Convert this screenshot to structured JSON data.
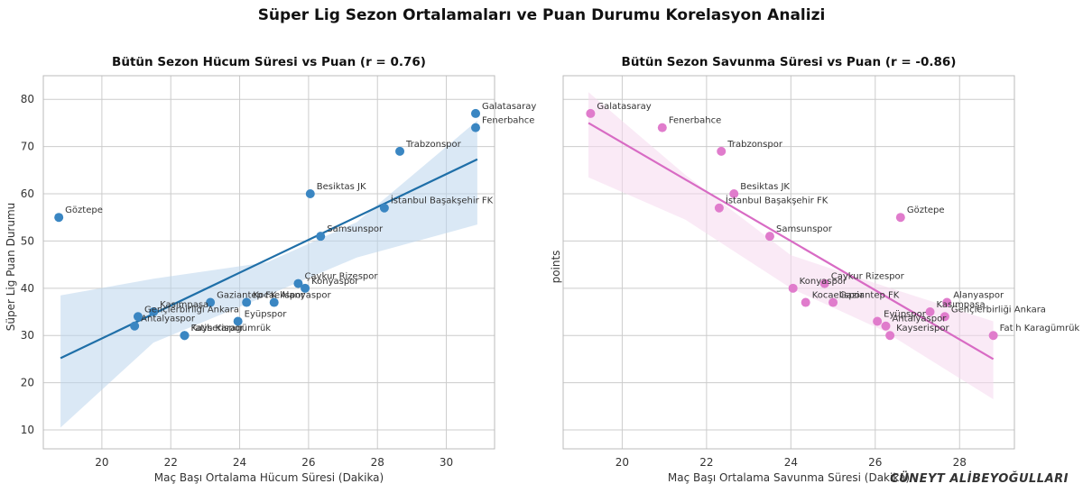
{
  "suptitle": "Süper Lig Sezon Ortalamaları ve Puan Durumu Korelasyon Analizi",
  "signature": "CÜNEYT ALİBEYOĞULLARI",
  "colors": {
    "left_points": "#3a86c2",
    "left_line": "#1f6fa8",
    "left_band": "#bcd6ec",
    "right_points": "#e07ccc",
    "right_line": "#d86bc4",
    "right_band": "#f6d8ef",
    "grid": "#cccccc",
    "spine": "#bbbbbb"
  },
  "chart_data": [
    {
      "type": "scatter",
      "title": "Bütün Sezon Hücum Süresi vs Puan (r = 0.76)",
      "xlabel": "Maç Başı Ortalama Hücum Süresi (Dakika)",
      "ylabel": "Süper Lig Puan Durumu",
      "xlim": [
        18.3,
        31.4
      ],
      "ylim": [
        6,
        85
      ],
      "xticks": [
        20,
        22,
        24,
        26,
        28,
        30
      ],
      "yticks": [
        10,
        20,
        30,
        40,
        50,
        60,
        70,
        80
      ],
      "grid": true,
      "regression": {
        "x": [
          18.8,
          30.9
        ],
        "y": [
          25.2,
          67.3
        ]
      },
      "ci_band": {
        "x": [
          18.8,
          21.5,
          24.8,
          27.4,
          30.9
        ],
        "lower": [
          10.5,
          28.5,
          38.5,
          46.5,
          53.5
        ],
        "upper": [
          38.5,
          42.0,
          45.5,
          54.0,
          75.5
        ]
      },
      "points": [
        {
          "team": "Galatasaray",
          "x": 30.85,
          "y": 77
        },
        {
          "team": "Fenerbahce",
          "x": 30.85,
          "y": 74
        },
        {
          "team": "Trabzonspor",
          "x": 28.65,
          "y": 69
        },
        {
          "team": "Besiktas JK",
          "x": 26.05,
          "y": 60
        },
        {
          "team": "İstanbul Başakşehir FK",
          "x": 28.2,
          "y": 57
        },
        {
          "team": "Göztepe",
          "x": 18.75,
          "y": 55
        },
        {
          "team": "Samsunspor",
          "x": 26.35,
          "y": 51
        },
        {
          "team": "Çaykur Rizespor",
          "x": 25.7,
          "y": 41
        },
        {
          "team": "Konyaspor",
          "x": 25.9,
          "y": 40
        },
        {
          "team": "Gaziantep FK",
          "x": 23.15,
          "y": 37
        },
        {
          "team": "Kocaelispor",
          "x": 24.2,
          "y": 37
        },
        {
          "team": "Alanyaspor",
          "x": 25.0,
          "y": 37
        },
        {
          "team": "Kasımpaşa",
          "x": 21.5,
          "y": 35
        },
        {
          "team": "Gençlerbirliği Ankara",
          "x": 21.05,
          "y": 34
        },
        {
          "team": "Eyüpspor",
          "x": 23.95,
          "y": 33
        },
        {
          "team": "Antalyaspor",
          "x": 20.95,
          "y": 32
        },
        {
          "team": "Kayserispor",
          "x": 22.4,
          "y": 30
        },
        {
          "team": "Fatih Karagümrük",
          "x": 22.4,
          "y": 30
        }
      ]
    },
    {
      "type": "scatter",
      "title": "Bütün Sezon Savunma Süresi vs Puan (r = -0.86)",
      "xlabel": "Maç Başı Ortalama Savunma Süresi (Dakika)",
      "ylabel": "points",
      "xlim": [
        18.6,
        29.3
      ],
      "ylim": [
        6,
        85
      ],
      "xticks": [
        20,
        22,
        24,
        26,
        28
      ],
      "yticks": [
        10,
        20,
        30,
        40,
        50,
        60,
        70,
        80
      ],
      "grid": true,
      "regression": {
        "x": [
          19.2,
          28.8
        ],
        "y": [
          75.0,
          25.0
        ]
      },
      "ci_band": {
        "x": [
          19.2,
          21.5,
          24.0,
          26.2,
          28.8
        ],
        "lower": [
          63.5,
          54.5,
          40.0,
          31.0,
          16.5
        ],
        "upper": [
          81.5,
          64.0,
          47.0,
          40.5,
          33.0
        ]
      },
      "points": [
        {
          "team": "Galatasaray",
          "x": 19.25,
          "y": 77
        },
        {
          "team": "Fenerbahce",
          "x": 20.95,
          "y": 74
        },
        {
          "team": "Trabzonspor",
          "x": 22.35,
          "y": 69
        },
        {
          "team": "Besiktas JK",
          "x": 22.65,
          "y": 60
        },
        {
          "team": "İstanbul Başakşehir FK",
          "x": 22.3,
          "y": 57
        },
        {
          "team": "Göztepe",
          "x": 26.6,
          "y": 55
        },
        {
          "team": "Samsunspor",
          "x": 23.5,
          "y": 51
        },
        {
          "team": "Çaykur Rizespor",
          "x": 24.8,
          "y": 41
        },
        {
          "team": "Konyaspor",
          "x": 24.05,
          "y": 40
        },
        {
          "team": "Kocaelispor",
          "x": 24.35,
          "y": 37
        },
        {
          "team": "Gaziantep FK",
          "x": 25.0,
          "y": 37
        },
        {
          "team": "Alanyaspor",
          "x": 27.7,
          "y": 37
        },
        {
          "team": "Kasımpaşa",
          "x": 27.3,
          "y": 35
        },
        {
          "team": "Gençlerbirliği Ankara",
          "x": 27.65,
          "y": 34
        },
        {
          "team": "Eyüpspor",
          "x": 26.05,
          "y": 33
        },
        {
          "team": "Antalyaspor",
          "x": 26.25,
          "y": 32
        },
        {
          "team": "Kayserispor",
          "x": 26.35,
          "y": 30
        },
        {
          "team": "Fatih Karagümrük",
          "x": 28.8,
          "y": 30
        }
      ]
    }
  ]
}
